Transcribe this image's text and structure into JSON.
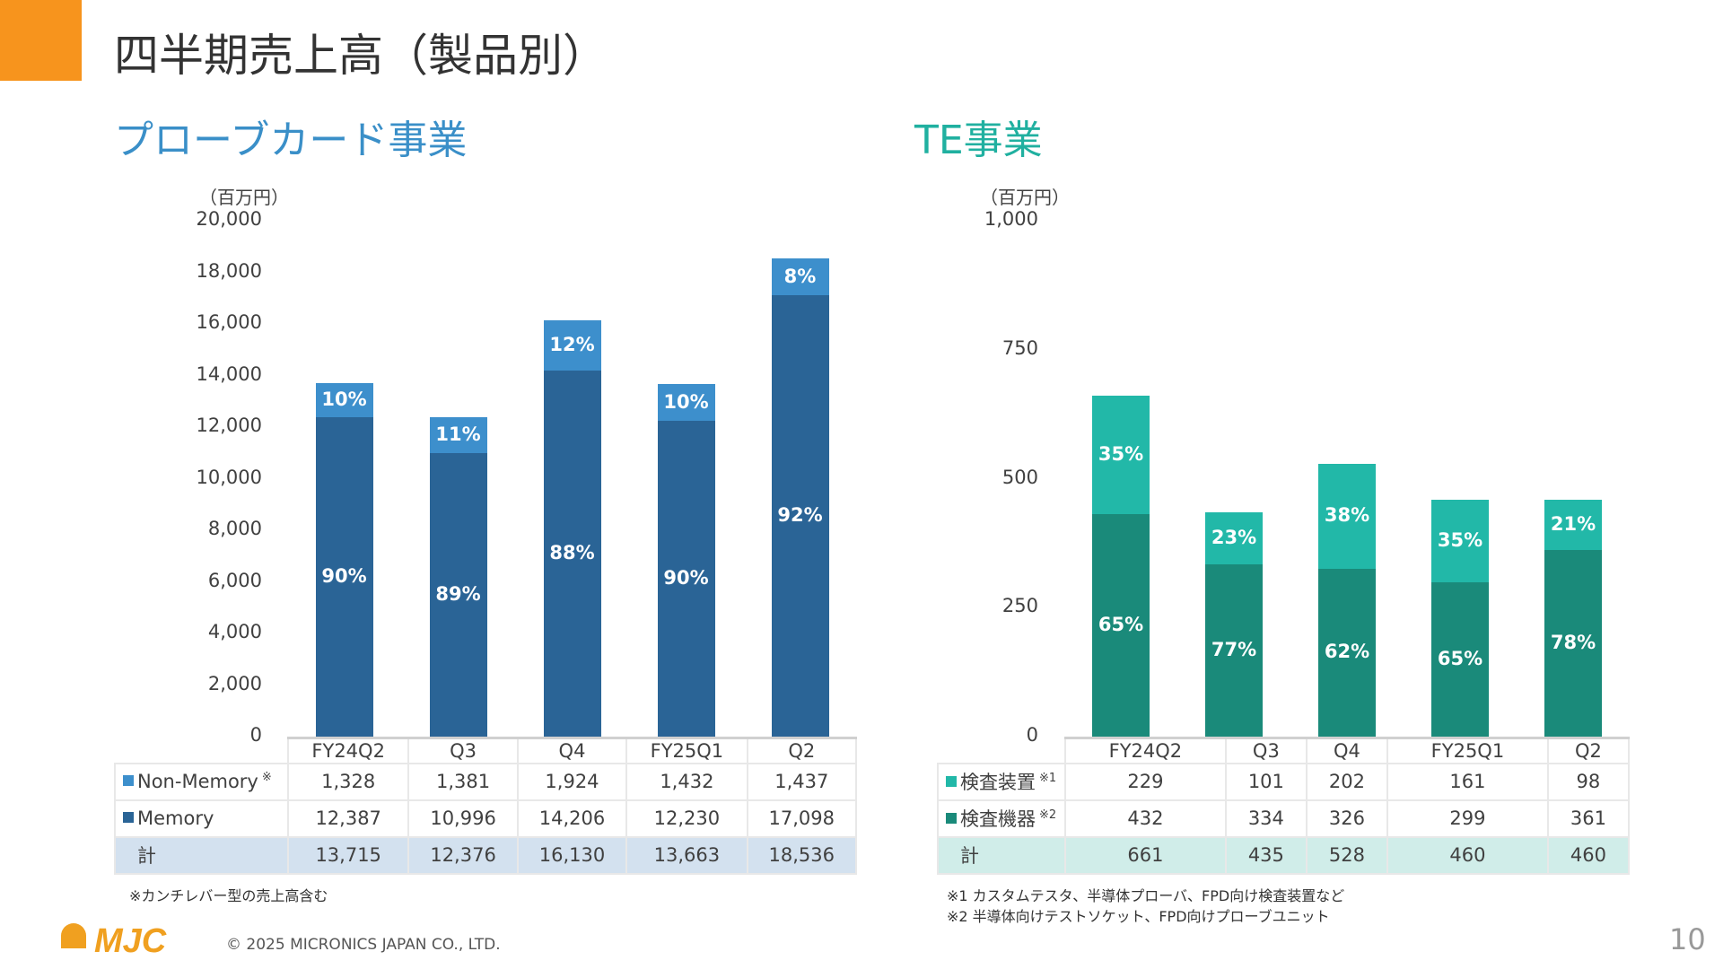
{
  "title": "四半期売上高（製品別）",
  "footer": {
    "logo_text": "MJC",
    "copyright": "© 2025 MICRONICS JAPAN CO., LTD.",
    "page": "10"
  },
  "chart_data": [
    {
      "type": "bar",
      "stacked": true,
      "title": "プローブカード事業",
      "unit": "（百万円）",
      "ylim": [
        0,
        20000
      ],
      "yticks": [
        "0",
        "2,000",
        "4,000",
        "6,000",
        "8,000",
        "10,000",
        "12,000",
        "14,000",
        "16,000",
        "18,000",
        "20,000"
      ],
      "categories": [
        "FY24Q2",
        "Q3",
        "Q4",
        "FY25Q1",
        "Q2"
      ],
      "series": [
        {
          "name": "Memory",
          "color": "#2a6496",
          "values": [
            12387,
            10996,
            14206,
            12230,
            17098
          ],
          "value_labels": [
            "12,387",
            "10,996",
            "14,206",
            "12,230",
            "17,098"
          ],
          "pct_labels": [
            "90%",
            "89%",
            "88%",
            "90%",
            "92%"
          ]
        },
        {
          "name": "Non-Memory",
          "mark": "※",
          "color": "#3d8fcc",
          "values": [
            1328,
            1381,
            1924,
            1432,
            1437
          ],
          "value_labels": [
            "1,328",
            "1,381",
            "1,924",
            "1,432",
            "1,437"
          ],
          "pct_labels": [
            "10%",
            "11%",
            "12%",
            "10%",
            "8%"
          ]
        }
      ],
      "total_label": "計",
      "totals": [
        "13,715",
        "12,376",
        "16,130",
        "13,663",
        "18,536"
      ],
      "total_bg": "#d3e1ef",
      "notes": [
        "※カンチレバー型の売上高含む"
      ]
    },
    {
      "type": "bar",
      "stacked": true,
      "title": "TE事業",
      "unit": "（百万円）",
      "ylim": [
        0,
        1000
      ],
      "yticks": [
        "0",
        "250",
        "500",
        "750",
        "1,000"
      ],
      "categories": [
        "FY24Q2",
        "Q3",
        "Q4",
        "FY25Q1",
        "Q2"
      ],
      "series": [
        {
          "name": "検査機器",
          "mark": "※2",
          "color": "#1a8a7a",
          "values": [
            432,
            334,
            326,
            299,
            361
          ],
          "value_labels": [
            "432",
            "334",
            "326",
            "299",
            "361"
          ],
          "pct_labels": [
            "65%",
            "77%",
            "62%",
            "65%",
            "78%"
          ]
        },
        {
          "name": "検査装置",
          "mark": "※1",
          "color": "#22b8a8",
          "values": [
            229,
            101,
            202,
            161,
            98
          ],
          "value_labels": [
            "229",
            "101",
            "202",
            "161",
            "98"
          ],
          "pct_labels": [
            "35%",
            "23%",
            "38%",
            "35%",
            "21%"
          ]
        }
      ],
      "total_label": "計",
      "totals": [
        "661",
        "435",
        "528",
        "460",
        "460"
      ],
      "total_bg": "#d0ede9",
      "notes": [
        "※1 カスタムテスタ、半導体プローバ、FPD向け検査装置など",
        "※2 半導体向けテストソケット、FPD向けプローブユニット"
      ]
    }
  ]
}
